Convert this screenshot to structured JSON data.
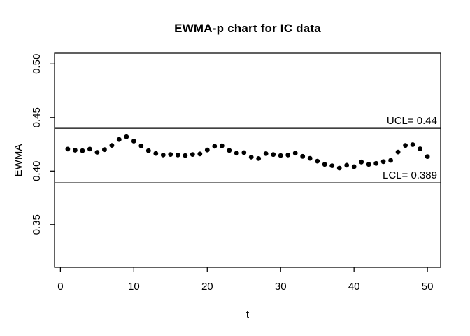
{
  "figure": {
    "background": "#ffffff",
    "foreground": "#000000"
  },
  "chart_data": {
    "type": "scatter",
    "title": "EWMA-p chart for IC data",
    "xlabel": "t",
    "ylabel": "EWMA",
    "grid": false,
    "marker": "filled-circle",
    "marker_color": "#000000",
    "xlim": [
      -0.8,
      51.8
    ],
    "ylim": [
      0.31,
      0.51
    ],
    "x_ticks": [
      0,
      10,
      20,
      30,
      40,
      50
    ],
    "x_tick_labels": [
      "0",
      "10",
      "20",
      "30",
      "40",
      "50"
    ],
    "y_ticks": [
      0.35,
      0.4,
      0.45,
      0.5
    ],
    "y_tick_labels": [
      "0.35",
      "0.40",
      "0.45",
      "0.50"
    ],
    "control_limits": {
      "ucl": {
        "value": 0.44,
        "label": "UCL= 0.44"
      },
      "lcl": {
        "value": 0.389,
        "label": "LCL= 0.389"
      }
    },
    "x": [
      1,
      2,
      3,
      4,
      5,
      6,
      7,
      8,
      9,
      10,
      11,
      12,
      13,
      14,
      15,
      16,
      17,
      18,
      19,
      20,
      21,
      22,
      23,
      24,
      25,
      26,
      27,
      28,
      29,
      30,
      31,
      32,
      33,
      34,
      35,
      36,
      37,
      38,
      39,
      40,
      41,
      42,
      43,
      44,
      45,
      46,
      47,
      48,
      49,
      50
    ],
    "y": [
      0.4205,
      0.4195,
      0.419,
      0.4205,
      0.4175,
      0.42,
      0.424,
      0.4295,
      0.432,
      0.428,
      0.4235,
      0.419,
      0.4165,
      0.415,
      0.4155,
      0.415,
      0.4145,
      0.4155,
      0.416,
      0.4197,
      0.4232,
      0.4236,
      0.4193,
      0.4167,
      0.4172,
      0.413,
      0.4117,
      0.4163,
      0.4154,
      0.4145,
      0.415,
      0.4167,
      0.4137,
      0.4119,
      0.4093,
      0.4063,
      0.405,
      0.4028,
      0.4055,
      0.4041,
      0.4085,
      0.4063,
      0.4072,
      0.4088,
      0.41,
      0.4178,
      0.4239,
      0.4247,
      0.4208,
      0.4135
    ]
  }
}
